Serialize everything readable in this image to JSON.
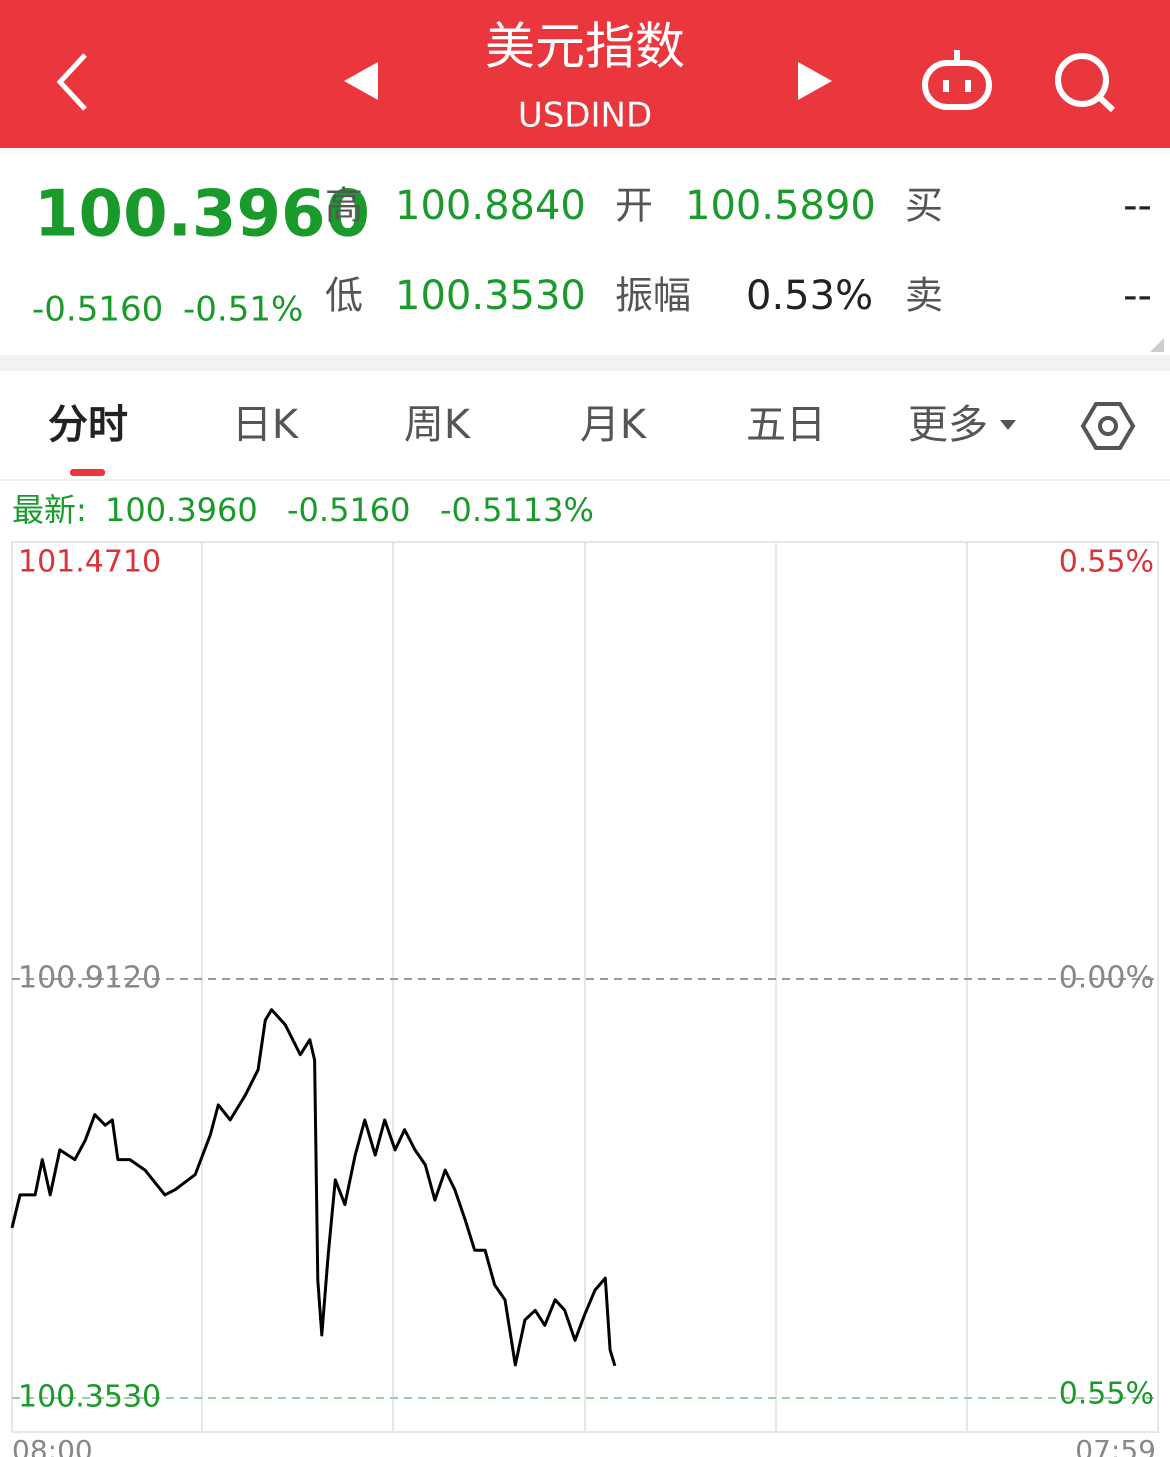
{
  "header": {
    "title": "美元指数",
    "subtitle": "USDIND"
  },
  "quote": {
    "price": "100.3960",
    "change": "-0.5160",
    "change_pct": "-0.51%",
    "high_label": "高",
    "high": "100.8840",
    "low_label": "低",
    "low": "100.3530",
    "open_label": "开",
    "open": "100.5890",
    "amplitude_label": "振幅",
    "amplitude": "0.53%",
    "buy_label": "买",
    "buy": "--",
    "sell_label": "卖",
    "sell": "--"
  },
  "tabs": [
    "分时",
    "日K",
    "周K",
    "月K",
    "五日",
    "更多"
  ],
  "latest": {
    "label": "最新:",
    "price": "100.3960",
    "change": "-0.5160",
    "change_pct": "-0.5113%"
  },
  "chart_data": {
    "type": "line",
    "color": "#000000",
    "x": [
      0,
      10,
      29,
      38,
      48,
      60,
      79,
      92,
      104,
      117,
      126,
      133,
      148,
      167,
      192,
      205,
      230,
      249,
      259,
      274,
      293,
      309,
      318,
      326,
      343,
      362,
      374,
      380,
      384,
      389,
      397,
      406,
      418,
      431,
      443,
      456,
      468,
      481,
      493,
      506,
      519,
      531,
      544,
      556,
      569,
      581,
      594,
      606,
      619,
      632,
      644,
      657,
      669,
      682,
      694,
      707,
      719,
      732,
      745,
      751,
      757
    ],
    "values": [
      100.58,
      100.624,
      100.624,
      100.671,
      100.624,
      100.684,
      100.671,
      100.697,
      100.731,
      100.717,
      100.724,
      100.671,
      100.671,
      100.657,
      100.624,
      100.631,
      100.651,
      100.704,
      100.744,
      100.724,
      100.757,
      100.791,
      100.857,
      100.871,
      100.851,
      100.811,
      100.831,
      100.804,
      100.51,
      100.437,
      100.544,
      100.644,
      100.611,
      100.677,
      100.724,
      100.677,
      100.724,
      100.684,
      100.711,
      100.684,
      100.664,
      100.617,
      100.657,
      100.631,
      100.591,
      100.55,
      100.55,
      100.504,
      100.484,
      100.397,
      100.457,
      100.47,
      100.45,
      100.484,
      100.47,
      100.43,
      100.464,
      100.497,
      100.513,
      100.417,
      100.396
    ],
    "xlim": [
      0,
      1439
    ],
    "xticks": [
      {
        "value": 0,
        "label": "08:00"
      },
      {
        "value": 1439,
        "label": "07:59"
      }
    ],
    "ylim": [
      100.353,
      101.471
    ],
    "yticks": [
      {
        "value": 101.471,
        "label": "101.4710"
      },
      {
        "value": 100.912,
        "label": "100.9120"
      },
      {
        "value": 100.353,
        "label": "100.3530"
      }
    ],
    "y2lim": [
      -0.554,
      0.554
    ],
    "y2ticks": [
      {
        "value": 0.55,
        "label": "0.55%"
      },
      {
        "value": 0,
        "label": "0.00%"
      },
      {
        "value": -0.55,
        "label": "0.55%"
      }
    ]
  }
}
